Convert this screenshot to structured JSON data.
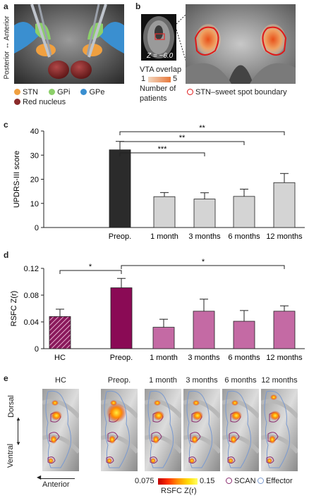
{
  "panel_a": {
    "letter": "a",
    "axis_top": "Anterior",
    "axis_bottom": "Posterior",
    "legend": [
      {
        "label": "STN",
        "color": "#f0a040"
      },
      {
        "label": "GPi",
        "color": "#8ccf6a"
      },
      {
        "label": "GPe",
        "color": "#3a8fd0"
      },
      {
        "label": "Red nucleus",
        "color": "#8a2a2a"
      }
    ]
  },
  "panel_b": {
    "letter": "b",
    "z_label": "Z = −6.0",
    "vta_title": "VTA overlap",
    "vta_min": "1",
    "vta_max": "5",
    "vta_sub1": "Number of",
    "vta_sub2": "patients",
    "sweet_spot": "STN–sweet spot boundary"
  },
  "panel_c": {
    "letter": "c",
    "ylabel": "UPDRS-III score",
    "yticks": [
      "0",
      "10",
      "20",
      "30",
      "40"
    ],
    "sig": [
      "***",
      "**",
      "**"
    ]
  },
  "panel_d": {
    "letter": "d",
    "ylabel": "RSFC Z(r)",
    "yticks": [
      "0",
      "0.04",
      "0.08",
      "0.12"
    ],
    "sig": [
      "*",
      "*"
    ]
  },
  "panel_e": {
    "letter": "e",
    "columns": [
      "HC",
      "Preop.",
      "1 month",
      "3 months",
      "6 months",
      "12 months"
    ],
    "dorsal": "Dorsal",
    "ventral": "Ventral",
    "anterior": "Anterior",
    "colorbar_min": "0.075",
    "colorbar_max": "0.15",
    "colorbar_label": "RSFC Z(r)",
    "legend_scan": "SCAN",
    "legend_effector": "Effector",
    "scan_color": "#8a2a6e",
    "effector_color": "#7a9ad0"
  },
  "chart_data": [
    {
      "type": "bar",
      "title": "",
      "ylabel": "UPDRS-III score",
      "ylim": [
        0,
        40
      ],
      "categories": [
        "Preop.",
        "1 month",
        "3 months",
        "6 months",
        "12 months"
      ],
      "values": [
        32.2,
        12.8,
        11.8,
        12.9,
        18.6
      ],
      "errors": [
        3.5,
        1.7,
        2.6,
        3.0,
        3.8
      ],
      "colors": [
        "#2b2b2b",
        "#d4d4d4",
        "#d4d4d4",
        "#d4d4d4",
        "#d4d4d4"
      ]
    },
    {
      "type": "bar",
      "title": "",
      "ylabel": "RSFC Z(r)",
      "ylim": [
        0,
        0.12
      ],
      "categories": [
        "HC",
        "Preop.",
        "1 month",
        "3 months",
        "6 months",
        "12 months"
      ],
      "values": [
        0.048,
        0.091,
        0.032,
        0.056,
        0.041,
        0.056
      ],
      "errors": [
        0.011,
        0.014,
        0.012,
        0.018,
        0.016,
        0.008
      ],
      "colors": [
        "#8a1a5c",
        "#8a0a55",
        "#c46aa4",
        "#c46aa4",
        "#c46aa4",
        "#c46aa4"
      ]
    }
  ]
}
